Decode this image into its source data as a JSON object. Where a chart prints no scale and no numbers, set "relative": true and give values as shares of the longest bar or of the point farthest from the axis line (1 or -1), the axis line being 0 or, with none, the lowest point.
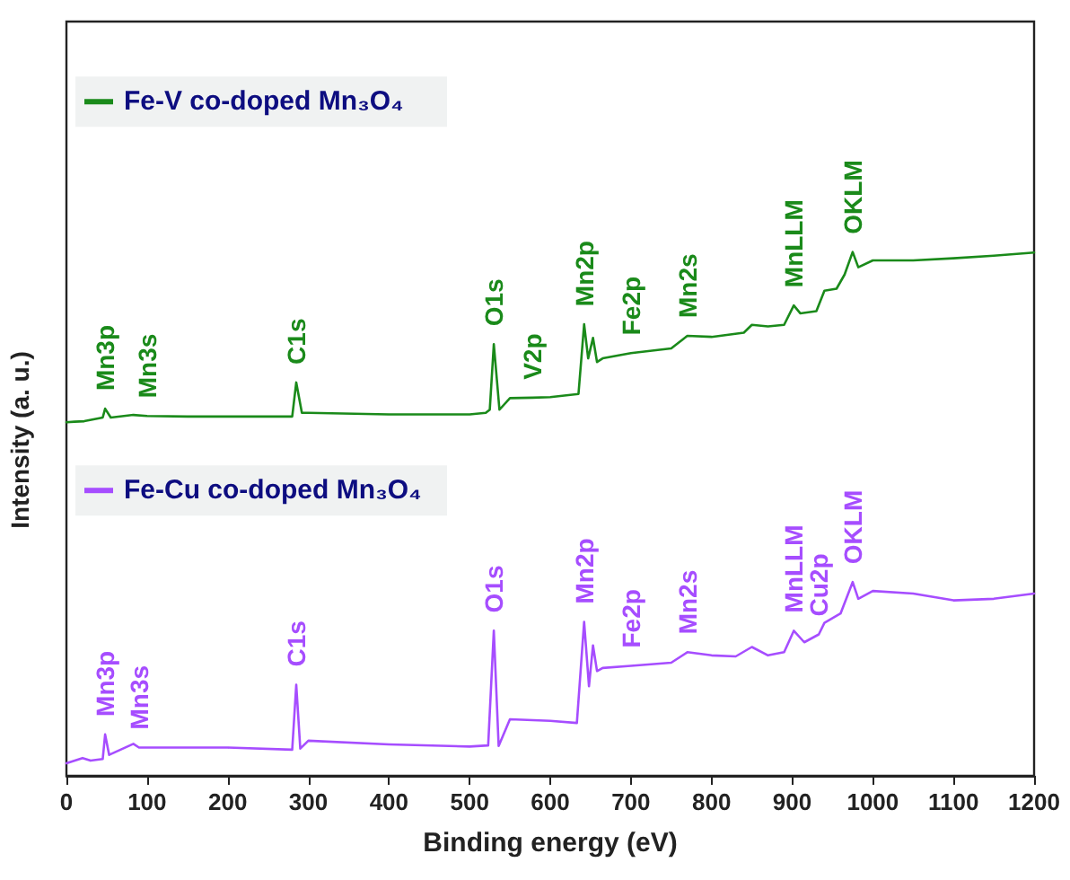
{
  "chart_data": {
    "type": "line",
    "xlabel": "Binding energy (eV)",
    "ylabel": "Intensity (a. u.)",
    "relative": true,
    "xlim": [
      0,
      1200
    ],
    "xticks": [
      0,
      100,
      200,
      300,
      400,
      500,
      600,
      700,
      800,
      900,
      1000,
      1100,
      1200
    ],
    "tick_labels": "x",
    "grid": false,
    "legend": "left",
    "marker": "none",
    "line_style": "solid",
    "series": [
      {
        "name": "Fe-V co-doped Mn₃O₄",
        "color": "#1a8a1a",
        "x": [
          0,
          10,
          22,
          45,
          48,
          55,
          83,
          100,
          150,
          270,
          280,
          285,
          292,
          300,
          400,
          500,
          520,
          525,
          530,
          537,
          550,
          578,
          600,
          635,
          642,
          647,
          653,
          658,
          665,
          700,
          750,
          770,
          800,
          840,
          850,
          870,
          890,
          902,
          910,
          930,
          940,
          955,
          965,
          975,
          982,
          1000,
          1050,
          1100,
          1150,
          1200
        ],
        "values": [
          0.675,
          0.676,
          0.677,
          0.684,
          0.701,
          0.684,
          0.689,
          0.687,
          0.686,
          0.686,
          0.686,
          0.751,
          0.693,
          0.693,
          0.69,
          0.69,
          0.693,
          0.699,
          0.824,
          0.699,
          0.721,
          0.722,
          0.723,
          0.729,
          0.862,
          0.797,
          0.836,
          0.79,
          0.797,
          0.807,
          0.816,
          0.84,
          0.838,
          0.846,
          0.861,
          0.858,
          0.861,
          0.898,
          0.883,
          0.887,
          0.926,
          0.93,
          0.957,
          1.0,
          0.971,
          0.984,
          0.984,
          0.988,
          0.993,
          0.999
        ]
      },
      {
        "name": "Fe-Cu co-doped Mn₃O₄",
        "color": "#a64dff",
        "x": [
          0,
          20,
          30,
          45,
          48,
          53,
          83,
          90,
          200,
          280,
          285,
          290,
          300,
          400,
          500,
          523,
          530,
          536,
          550,
          600,
          633,
          642,
          648,
          653,
          658,
          665,
          700,
          750,
          770,
          800,
          830,
          850,
          870,
          890,
          902,
          915,
          933,
          940,
          960,
          975,
          982,
          1000,
          1050,
          1100,
          1150,
          1200
        ],
        "values": [
          0.024,
          0.034,
          0.029,
          0.032,
          0.079,
          0.04,
          0.061,
          0.054,
          0.054,
          0.05,
          0.174,
          0.052,
          0.067,
          0.06,
          0.056,
          0.058,
          0.277,
          0.057,
          0.108,
          0.105,
          0.101,
          0.294,
          0.171,
          0.249,
          0.2,
          0.206,
          0.21,
          0.216,
          0.236,
          0.23,
          0.228,
          0.246,
          0.23,
          0.236,
          0.277,
          0.255,
          0.27,
          0.292,
          0.31,
          0.37,
          0.338,
          0.353,
          0.348,
          0.335,
          0.338,
          0.348
        ]
      }
    ],
    "annotations": [
      {
        "text": "Mn3p",
        "x": 48,
        "y": 0.701
      },
      {
        "text": "Mn3s",
        "x": 100,
        "y": 0.687
      },
      {
        "text": "C1s",
        "x": 285,
        "y": 0.751
      },
      {
        "text": "O1s",
        "x": 530,
        "y": 0.824
      },
      {
        "text": "V2p",
        "x": 578,
        "y": 0.722
      },
      {
        "text": "Mn2p",
        "x": 642,
        "y": 0.862
      },
      {
        "text": "Fe2p",
        "x": 700,
        "y": 0.807
      },
      {
        "text": "Mn2s",
        "x": 770,
        "y": 0.84
      },
      {
        "text": "MnLLM",
        "x": 902,
        "y": 0.898
      },
      {
        "text": "OKLM",
        "x": 975,
        "y": 1.0
      },
      {
        "text": "Mn3p",
        "x": 48,
        "y": 0.079
      },
      {
        "text": "Mn3s",
        "x": 90,
        "y": 0.054
      },
      {
        "text": "C1s",
        "x": 285,
        "y": 0.174
      },
      {
        "text": "O1s",
        "x": 530,
        "y": 0.277
      },
      {
        "text": "Mn2p",
        "x": 642,
        "y": 0.294
      },
      {
        "text": "Fe2p",
        "x": 700,
        "y": 0.21
      },
      {
        "text": "Mn2s",
        "x": 770,
        "y": 0.236
      },
      {
        "text": "MnLLM",
        "x": 902,
        "y": 0.277
      },
      {
        "text": "Cu2p",
        "x": 933,
        "y": 0.27
      },
      {
        "text": "OKLM",
        "x": 975,
        "y": 0.37
      }
    ]
  }
}
